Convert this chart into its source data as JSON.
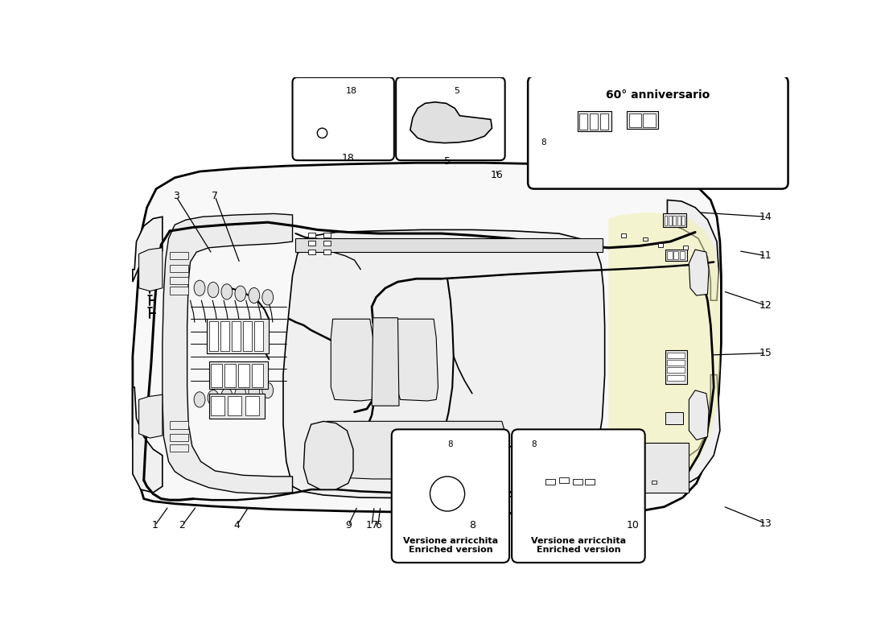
{
  "bg_color": "#ffffff",
  "lc": "#000000",
  "llc": "#999999",
  "yellow_hi": "#f0f0b0",
  "anniv_label": "60° anniversario",
  "enriched_it": "Versione arricchita",
  "enriched_en": "Enriched version",
  "fw": 11.0,
  "fh": 8.0,
  "dpi": 100
}
